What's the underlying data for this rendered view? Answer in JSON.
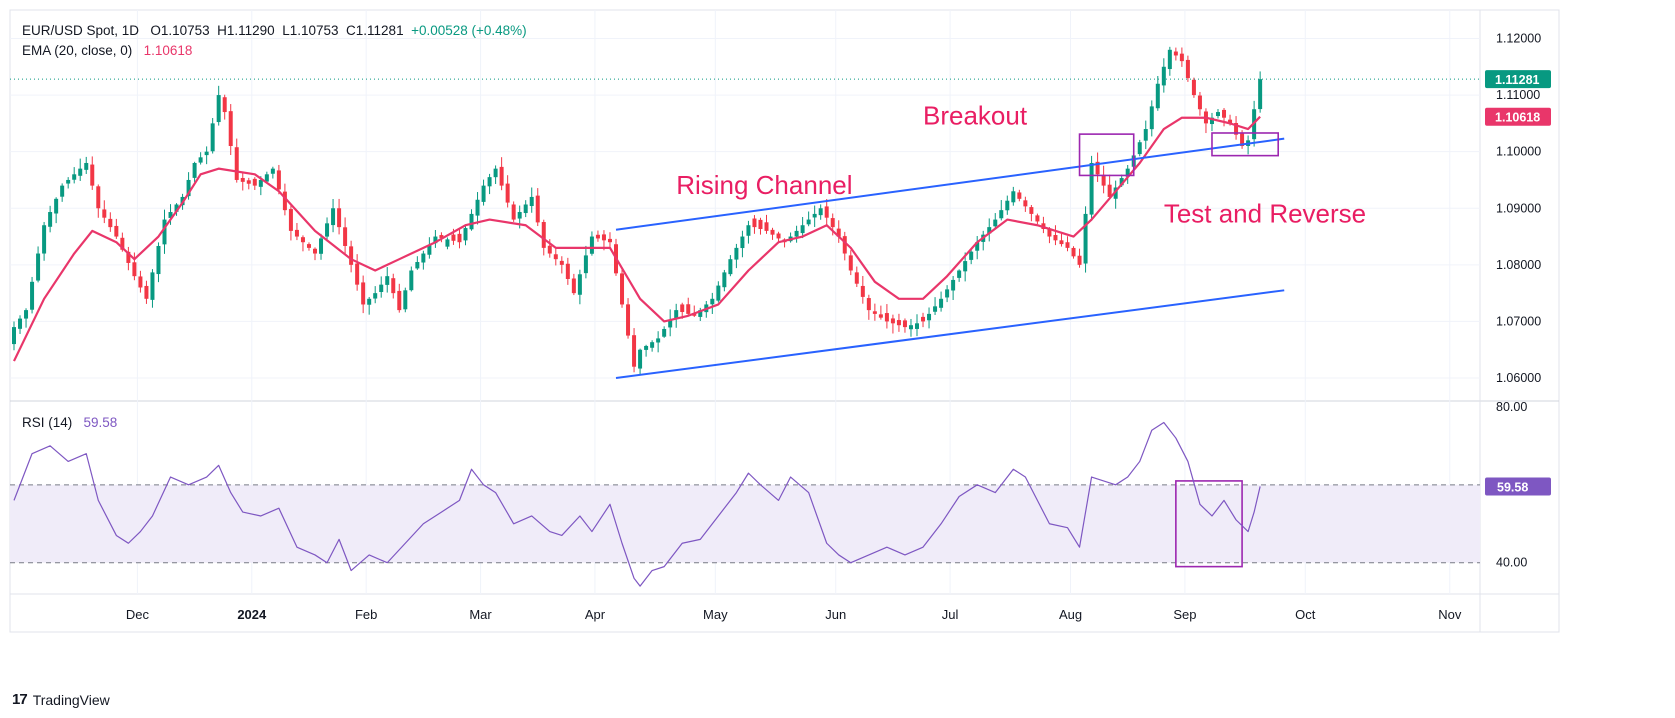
{
  "header": {
    "symbol": "EUR/USD Spot, 1D",
    "ohlc_open": "O1.10753",
    "ohlc_high": "H1.11290",
    "ohlc_low": "L1.10753",
    "ohlc_close": "C1.11281",
    "change": "+0.00528 (+0.48%)",
    "ema_label": "EMA (20, close, 0)",
    "ema_value": "1.10618",
    "rsi_label": "RSI (14)",
    "rsi_value": "59.58"
  },
  "branding": {
    "logo_text": "TradingView",
    "logo_mark": "17"
  },
  "colors": {
    "up": "#089981",
    "down": "#f23645",
    "ema": "#e9366a",
    "channel": "#2962ff",
    "annotation": "#e91e63",
    "box": "#9c27b0",
    "rsi": "#7e57c2",
    "rsi_band": "#f0ecf9"
  },
  "chart_data": {
    "type": "candlestick",
    "title": "EUR/USD Spot, 1D",
    "price_axis": {
      "ylim": [
        1.057,
        1.1215
      ],
      "ticks": [
        "1.06000",
        "1.07000",
        "1.08000",
        "1.09000",
        "1.10000",
        "1.11000",
        "1.12000"
      ],
      "tick_values": [
        1.06,
        1.07,
        1.08,
        1.09,
        1.1,
        1.11,
        1.12
      ],
      "last_price_label": "1.11281",
      "last_price": 1.11281,
      "ema_label": "1.10618",
      "ema_last": 1.10618
    },
    "time_axis": {
      "labels": [
        "Dec",
        "2024",
        "Feb",
        "Mar",
        "Apr",
        "May",
        "Jun",
        "Jul",
        "Aug",
        "Sep",
        "Oct",
        "Nov"
      ],
      "positions": [
        20.5,
        39.5,
        58.5,
        77.5,
        96.5,
        116.5,
        136.5,
        155.5,
        175.5,
        194.5,
        214.5,
        238.5
      ]
    },
    "close_series": [
      {
        "i": 0,
        "c": 1.069
      },
      {
        "i": 2,
        "c": 1.072
      },
      {
        "i": 5,
        "c": 1.087
      },
      {
        "i": 8,
        "c": 1.094
      },
      {
        "i": 12,
        "c": 1.098
      },
      {
        "i": 14,
        "c": 1.09
      },
      {
        "i": 17,
        "c": 1.085
      },
      {
        "i": 20,
        "c": 1.078
      },
      {
        "i": 22,
        "c": 1.074
      },
      {
        "i": 25,
        "c": 1.088
      },
      {
        "i": 28,
        "c": 1.092
      },
      {
        "i": 30,
        "c": 1.098
      },
      {
        "i": 32,
        "c": 1.1
      },
      {
        "i": 34,
        "c": 1.11
      },
      {
        "i": 35,
        "c": 1.107
      },
      {
        "i": 37,
        "c": 1.095
      },
      {
        "i": 40,
        "c": 1.094
      },
      {
        "i": 43,
        "c": 1.097
      },
      {
        "i": 46,
        "c": 1.086
      },
      {
        "i": 50,
        "c": 1.082
      },
      {
        "i": 53,
        "c": 1.09
      },
      {
        "i": 56,
        "c": 1.08
      },
      {
        "i": 58,
        "c": 1.073
      },
      {
        "i": 60,
        "c": 1.075
      },
      {
        "i": 62,
        "c": 1.078
      },
      {
        "i": 64,
        "c": 1.072
      },
      {
        "i": 66,
        "c": 1.079
      },
      {
        "i": 70,
        "c": 1.085
      },
      {
        "i": 74,
        "c": 1.084
      },
      {
        "i": 78,
        "c": 1.094
      },
      {
        "i": 80,
        "c": 1.097
      },
      {
        "i": 83,
        "c": 1.088
      },
      {
        "i": 86,
        "c": 1.092
      },
      {
        "i": 88,
        "c": 1.083
      },
      {
        "i": 91,
        "c": 1.08
      },
      {
        "i": 93,
        "c": 1.075
      },
      {
        "i": 96,
        "c": 1.085
      },
      {
        "i": 99,
        "c": 1.084
      },
      {
        "i": 101,
        "c": 1.073
      },
      {
        "i": 103,
        "c": 1.062
      },
      {
        "i": 104,
        "c": 1.065
      },
      {
        "i": 107,
        "c": 1.067
      },
      {
        "i": 110,
        "c": 1.072
      },
      {
        "i": 113,
        "c": 1.071
      },
      {
        "i": 116,
        "c": 1.074
      },
      {
        "i": 119,
        "c": 1.081
      },
      {
        "i": 122,
        "c": 1.087
      },
      {
        "i": 125,
        "c": 1.086
      },
      {
        "i": 128,
        "c": 1.084
      },
      {
        "i": 131,
        "c": 1.087
      },
      {
        "i": 134,
        "c": 1.09
      },
      {
        "i": 137,
        "c": 1.085
      },
      {
        "i": 139,
        "c": 1.079
      },
      {
        "i": 142,
        "c": 1.072
      },
      {
        "i": 145,
        "c": 1.07
      },
      {
        "i": 148,
        "c": 1.069
      },
      {
        "i": 151,
        "c": 1.07
      },
      {
        "i": 154,
        "c": 1.074
      },
      {
        "i": 157,
        "c": 1.079
      },
      {
        "i": 160,
        "c": 1.084
      },
      {
        "i": 163,
        "c": 1.088
      },
      {
        "i": 166,
        "c": 1.093
      },
      {
        "i": 169,
        "c": 1.089
      },
      {
        "i": 172,
        "c": 1.085
      },
      {
        "i": 175,
        "c": 1.083
      },
      {
        "i": 177,
        "c": 1.08
      },
      {
        "i": 179,
        "c": 1.098
      },
      {
        "i": 182,
        "c": 1.092
      },
      {
        "i": 185,
        "c": 1.097
      },
      {
        "i": 188,
        "c": 1.104
      },
      {
        "i": 190,
        "c": 1.112
      },
      {
        "i": 192,
        "c": 1.118
      },
      {
        "i": 194,
        "c": 1.116
      },
      {
        "i": 196,
        "c": 1.11
      },
      {
        "i": 198,
        "c": 1.105
      },
      {
        "i": 200,
        "c": 1.107
      },
      {
        "i": 202,
        "c": 1.105
      },
      {
        "i": 204,
        "c": 1.101
      },
      {
        "i": 205,
        "c": 1.102
      },
      {
        "i": 206,
        "c": 1.1075
      },
      {
        "i": 207,
        "c": 1.11281
      }
    ],
    "ema_series": [
      {
        "i": 0,
        "v": 1.063
      },
      {
        "i": 5,
        "v": 1.074
      },
      {
        "i": 10,
        "v": 1.082
      },
      {
        "i": 13,
        "v": 1.086
      },
      {
        "i": 17,
        "v": 1.084
      },
      {
        "i": 20,
        "v": 1.081
      },
      {
        "i": 24,
        "v": 1.085
      },
      {
        "i": 28,
        "v": 1.091
      },
      {
        "i": 31,
        "v": 1.096
      },
      {
        "i": 34,
        "v": 1.097
      },
      {
        "i": 40,
        "v": 1.096
      },
      {
        "i": 44,
        "v": 1.093
      },
      {
        "i": 50,
        "v": 1.086
      },
      {
        "i": 56,
        "v": 1.081
      },
      {
        "i": 60,
        "v": 1.079
      },
      {
        "i": 64,
        "v": 1.081
      },
      {
        "i": 70,
        "v": 1.084
      },
      {
        "i": 75,
        "v": 1.087
      },
      {
        "i": 79,
        "v": 1.088
      },
      {
        "i": 85,
        "v": 1.087
      },
      {
        "i": 90,
        "v": 1.083
      },
      {
        "i": 96,
        "v": 1.083
      },
      {
        "i": 99,
        "v": 1.083
      },
      {
        "i": 104,
        "v": 1.074
      },
      {
        "i": 108,
        "v": 1.07
      },
      {
        "i": 112,
        "v": 1.071
      },
      {
        "i": 117,
        "v": 1.073
      },
      {
        "i": 122,
        "v": 1.079
      },
      {
        "i": 127,
        "v": 1.084
      },
      {
        "i": 131,
        "v": 1.085
      },
      {
        "i": 135,
        "v": 1.087
      },
      {
        "i": 139,
        "v": 1.083
      },
      {
        "i": 143,
        "v": 1.077
      },
      {
        "i": 147,
        "v": 1.074
      },
      {
        "i": 151,
        "v": 1.074
      },
      {
        "i": 155,
        "v": 1.078
      },
      {
        "i": 160,
        "v": 1.084
      },
      {
        "i": 165,
        "v": 1.088
      },
      {
        "i": 170,
        "v": 1.087
      },
      {
        "i": 176,
        "v": 1.085
      },
      {
        "i": 179,
        "v": 1.088
      },
      {
        "i": 183,
        "v": 1.093
      },
      {
        "i": 187,
        "v": 1.098
      },
      {
        "i": 191,
        "v": 1.104
      },
      {
        "i": 194,
        "v": 1.106
      },
      {
        "i": 198,
        "v": 1.106
      },
      {
        "i": 202,
        "v": 1.105
      },
      {
        "i": 205,
        "v": 1.104
      },
      {
        "i": 207,
        "v": 1.10618
      }
    ],
    "rsi": {
      "label": "RSI (14)",
      "last": 59.58,
      "last_label": "59.58",
      "upper_band": 60,
      "lower_band": 40,
      "ylim": [
        33,
        81
      ],
      "ticks": [
        "80.00",
        "40.00"
      ],
      "tick_values": [
        80,
        40
      ],
      "series": [
        {
          "i": 0,
          "v": 56
        },
        {
          "i": 3,
          "v": 68
        },
        {
          "i": 6,
          "v": 70
        },
        {
          "i": 9,
          "v": 66
        },
        {
          "i": 12,
          "v": 68
        },
        {
          "i": 14,
          "v": 56
        },
        {
          "i": 17,
          "v": 47
        },
        {
          "i": 19,
          "v": 45
        },
        {
          "i": 21,
          "v": 48
        },
        {
          "i": 23,
          "v": 52
        },
        {
          "i": 26,
          "v": 62
        },
        {
          "i": 29,
          "v": 60
        },
        {
          "i": 32,
          "v": 62
        },
        {
          "i": 34,
          "v": 65
        },
        {
          "i": 36,
          "v": 58
        },
        {
          "i": 38,
          "v": 53
        },
        {
          "i": 41,
          "v": 52
        },
        {
          "i": 44,
          "v": 54
        },
        {
          "i": 47,
          "v": 44
        },
        {
          "i": 50,
          "v": 42
        },
        {
          "i": 52,
          "v": 40
        },
        {
          "i": 54,
          "v": 46
        },
        {
          "i": 56,
          "v": 38
        },
        {
          "i": 59,
          "v": 42
        },
        {
          "i": 62,
          "v": 40
        },
        {
          "i": 65,
          "v": 45
        },
        {
          "i": 68,
          "v": 50
        },
        {
          "i": 71,
          "v": 53
        },
        {
          "i": 74,
          "v": 56
        },
        {
          "i": 76,
          "v": 64
        },
        {
          "i": 78,
          "v": 60
        },
        {
          "i": 80,
          "v": 58
        },
        {
          "i": 83,
          "v": 50
        },
        {
          "i": 86,
          "v": 52
        },
        {
          "i": 89,
          "v": 48
        },
        {
          "i": 91,
          "v": 47
        },
        {
          "i": 94,
          "v": 52
        },
        {
          "i": 96,
          "v": 48
        },
        {
          "i": 99,
          "v": 55
        },
        {
          "i": 101,
          "v": 45
        },
        {
          "i": 103,
          "v": 36
        },
        {
          "i": 104,
          "v": 34
        },
        {
          "i": 106,
          "v": 38
        },
        {
          "i": 108,
          "v": 39
        },
        {
          "i": 111,
          "v": 45
        },
        {
          "i": 114,
          "v": 46
        },
        {
          "i": 117,
          "v": 52
        },
        {
          "i": 120,
          "v": 58
        },
        {
          "i": 122,
          "v": 63
        },
        {
          "i": 124,
          "v": 60
        },
        {
          "i": 127,
          "v": 56
        },
        {
          "i": 129,
          "v": 62
        },
        {
          "i": 132,
          "v": 58
        },
        {
          "i": 135,
          "v": 45
        },
        {
          "i": 137,
          "v": 42
        },
        {
          "i": 139,
          "v": 40
        },
        {
          "i": 142,
          "v": 42
        },
        {
          "i": 145,
          "v": 44
        },
        {
          "i": 148,
          "v": 42
        },
        {
          "i": 151,
          "v": 44
        },
        {
          "i": 154,
          "v": 50
        },
        {
          "i": 157,
          "v": 57
        },
        {
          "i": 160,
          "v": 60
        },
        {
          "i": 163,
          "v": 58
        },
        {
          "i": 166,
          "v": 64
        },
        {
          "i": 168,
          "v": 62
        },
        {
          "i": 170,
          "v": 56
        },
        {
          "i": 172,
          "v": 50
        },
        {
          "i": 175,
          "v": 49
        },
        {
          "i": 177,
          "v": 44
        },
        {
          "i": 179,
          "v": 62
        },
        {
          "i": 181,
          "v": 61
        },
        {
          "i": 183,
          "v": 60
        },
        {
          "i": 185,
          "v": 62
        },
        {
          "i": 187,
          "v": 66
        },
        {
          "i": 189,
          "v": 74
        },
        {
          "i": 191,
          "v": 76
        },
        {
          "i": 193,
          "v": 72
        },
        {
          "i": 195,
          "v": 66
        },
        {
          "i": 197,
          "v": 55
        },
        {
          "i": 199,
          "v": 52
        },
        {
          "i": 201,
          "v": 56
        },
        {
          "i": 203,
          "v": 51
        },
        {
          "i": 205,
          "v": 48
        },
        {
          "i": 206,
          "v": 53
        },
        {
          "i": 207,
          "v": 59.58
        }
      ]
    },
    "channel": {
      "upper": {
        "i1": 100,
        "p1": 1.0862,
        "i2": 211,
        "p2": 1.1023
      },
      "lower": {
        "i1": 100,
        "p1": 1.06,
        "i2": 211,
        "p2": 1.0755
      }
    },
    "annotations": [
      {
        "text": "Rising Channel",
        "i": 110,
        "p": 1.0925
      },
      {
        "text": "Breakout",
        "i": 151,
        "p": 1.1048
      },
      {
        "text": "Test and Reverse",
        "i": 191,
        "p": 1.0875
      }
    ],
    "boxes": [
      {
        "i1": 177,
        "i2": 186,
        "p1": 1.0958,
        "p2": 1.1031,
        "panel": "price"
      },
      {
        "i1": 199,
        "i2": 210,
        "p1": 1.0993,
        "p2": 1.1033,
        "panel": "price"
      },
      {
        "i1": 193,
        "i2": 204,
        "v1": 39,
        "v2": 61,
        "panel": "rsi"
      }
    ]
  }
}
